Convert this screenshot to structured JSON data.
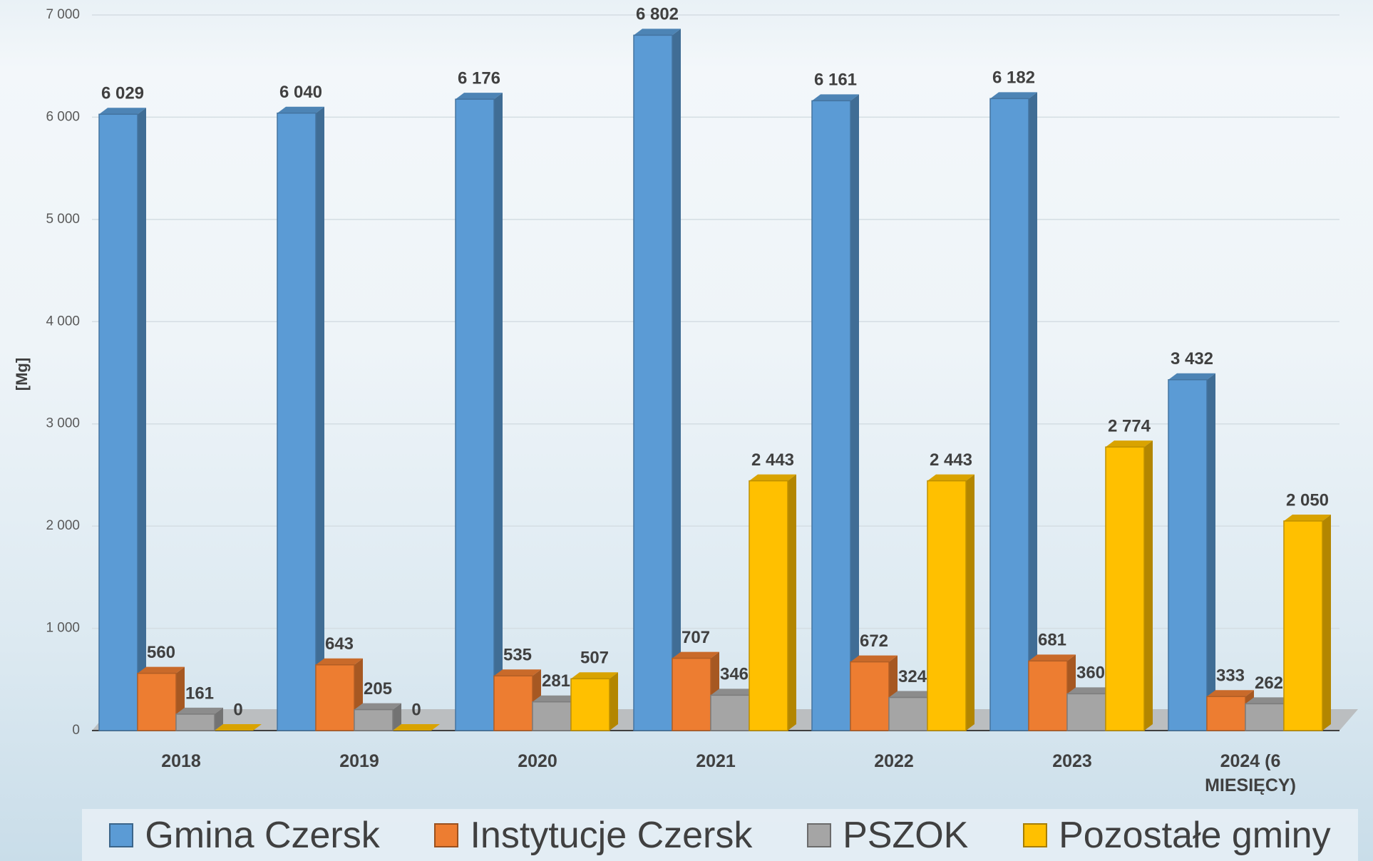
{
  "chart_data": {
    "type": "bar",
    "y_label": "[Mg]",
    "categories": [
      "2018",
      "2019",
      "2020",
      "2021",
      "2022",
      "2023",
      "2024 (6 MIESIĘCY)"
    ],
    "series": [
      {
        "name": "Gmina Czersk",
        "color": "#5b9bd5",
        "values": [
          6029,
          6040,
          6176,
          6802,
          6161,
          6182,
          3432
        ],
        "value_labels": [
          "6 029",
          "6 040",
          "6 176",
          "6 802",
          "6 161",
          "6 182",
          "3 432"
        ]
      },
      {
        "name": "Instytucje Czersk",
        "color": "#ed7d31",
        "values": [
          560,
          643,
          535,
          707,
          672,
          681,
          333
        ]
      },
      {
        "name": "PSZOK",
        "color": "#a5a5a5",
        "values": [
          161,
          205,
          281,
          346,
          324,
          360,
          262
        ]
      },
      {
        "name": "Pozostałe gminy",
        "color": "#ffc000",
        "values": [
          0,
          0,
          507,
          2443,
          2443,
          2774,
          2050
        ],
        "value_labels": [
          "0",
          "0",
          "507",
          "2 443",
          "2 443",
          "2 774",
          "2 050"
        ]
      }
    ],
    "ylim": [
      0,
      7000
    ],
    "yticks": [
      0,
      {
        "value": 1000,
        "label": "1 000"
      },
      {
        "value": 2000,
        "label": "2 000"
      },
      {
        "value": 3000,
        "label": "3 000"
      },
      {
        "value": 4000,
        "label": "4 000"
      },
      {
        "value": 5000,
        "label": "5 000"
      },
      {
        "value": 6000,
        "label": "6 000"
      },
      {
        "value": 7000,
        "label": "7 000"
      }
    ],
    "grid": true,
    "legend": "bottom"
  }
}
